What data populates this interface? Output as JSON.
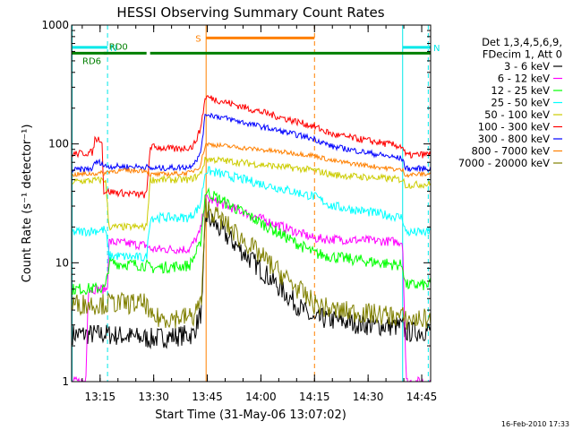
{
  "chart_data": {
    "type": "line",
    "title": "HESSI Observing Summary Count Rates",
    "xlabel": "Start Time (31-May-06 13:07:02)",
    "ylabel": "Count Rate (s⁻¹ detector⁻¹)",
    "yscale": "log",
    "ylim": [
      1,
      1000
    ],
    "xlim": [
      "13:07:02",
      "14:47:30"
    ],
    "x_ticks": [
      "13:15",
      "13:30",
      "13:45",
      "14:00",
      "14:15",
      "14:30",
      "14:45"
    ],
    "y_ticks": [
      "1",
      "10",
      "100",
      "1000"
    ],
    "grid": false,
    "legend_position": "right",
    "legend_header": [
      "Det 1,3,4,5,6,9,",
      "FDecim 1, Att 0"
    ],
    "date_stamp": "16-Feb-2010 17:33",
    "colors": {
      "frame": "#000000",
      "night": "#00e8e8",
      "saa": "#ff8000",
      "decim": "#007f00"
    },
    "markers": [
      {
        "label": "N",
        "color": "#00e8e8",
        "x_start": "13:07:02",
        "x_end": "13:17:05",
        "y": 650
      },
      {
        "label": "N",
        "color": "#00e8e8",
        "x_start": "14:39:40",
        "x_end": "14:47:30",
        "y": 650
      },
      {
        "label": "S",
        "color": "#ff8000",
        "x_start": "13:44:40",
        "x_end": "14:15:00",
        "y": 780
      },
      {
        "label": "RD0",
        "color": "#007f00",
        "x_start": "13:16:00",
        "x_end": "13:28:00",
        "y": 580
      },
      {
        "label": "RD6",
        "color": "#007f00",
        "x_start": "13:07:02",
        "x_end": "13:17:00",
        "y": 580
      },
      {
        "label": "",
        "color": "#007f00",
        "x_start": "13:29:00",
        "x_end": "14:47:30",
        "y": 580
      }
    ],
    "vertical_lines": [
      {
        "x": "13:07:10",
        "color": "#00e8e8",
        "style": "solid"
      },
      {
        "x": "13:17:05",
        "color": "#00e8e8",
        "style": "dashed"
      },
      {
        "x": "13:44:40",
        "color": "#ff8000",
        "style": "solid"
      },
      {
        "x": "14:15:00",
        "color": "#ff8000",
        "style": "dashed"
      },
      {
        "x": "14:39:40",
        "color": "#00e8e8",
        "style": "solid"
      },
      {
        "x": "14:46:50",
        "color": "#00e8e8",
        "style": "dashed"
      }
    ],
    "series": [
      {
        "name": "3 - 6 keV",
        "color": "#000000",
        "noise": 0.09,
        "points": [
          [
            "13:07:10",
            2.5
          ],
          [
            "13:17:00",
            2.5
          ],
          [
            "13:29:00",
            2.3
          ],
          [
            "13:41:00",
            2.5
          ],
          [
            "13:43:30",
            4
          ],
          [
            "13:44:30",
            25
          ],
          [
            "14:15:00",
            3.2
          ],
          [
            "14:17:00",
            3.4
          ],
          [
            "14:30:00",
            3
          ],
          [
            "14:39:40",
            2.9
          ],
          [
            "14:40:30",
            2.6
          ],
          [
            "14:47:30",
            2.7
          ]
        ]
      },
      {
        "name": "6 - 12 keV",
        "color": "#ff00ff",
        "noise": 0.04,
        "points": [
          [
            "13:07:10",
            1.0
          ],
          [
            "13:11:00",
            1.0
          ],
          [
            "13:11:40",
            6.0
          ],
          [
            "13:17:00",
            6.0
          ],
          [
            "13:17:30",
            15
          ],
          [
            "13:28:00",
            14
          ],
          [
            "13:29:00",
            13
          ],
          [
            "13:40:00",
            13
          ],
          [
            "13:43:00",
            18
          ],
          [
            "13:44:30",
            35
          ],
          [
            "14:15:00",
            16
          ],
          [
            "14:39:40",
            15
          ],
          [
            "14:40:40",
            1.0
          ],
          [
            "14:47:30",
            1.0
          ]
        ]
      },
      {
        "name": "12 - 25 keV",
        "color": "#00ff00",
        "noise": 0.05,
        "points": [
          [
            "13:07:10",
            6.0
          ],
          [
            "13:16:30",
            6.1
          ],
          [
            "13:17:30",
            10
          ],
          [
            "13:28:00",
            9.5
          ],
          [
            "13:29:00",
            9
          ],
          [
            "13:40:00",
            9.5
          ],
          [
            "13:43:00",
            14
          ],
          [
            "13:44:30",
            40
          ],
          [
            "14:15:00",
            12
          ],
          [
            "14:22:00",
            11
          ],
          [
            "14:39:40",
            9.5
          ],
          [
            "14:40:30",
            6.5
          ],
          [
            "14:47:30",
            6.5
          ]
        ]
      },
      {
        "name": "25 - 50 keV",
        "color": "#00ffff",
        "noise": 0.04,
        "points": [
          [
            "13:07:10",
            18
          ],
          [
            "13:16:30",
            19
          ],
          [
            "13:17:30",
            11.5
          ],
          [
            "13:28:00",
            11
          ],
          [
            "13:29:00",
            24
          ],
          [
            "13:40:00",
            24
          ],
          [
            "13:43:00",
            30
          ],
          [
            "13:44:30",
            60
          ],
          [
            "14:15:00",
            36
          ],
          [
            "14:20:00",
            30
          ],
          [
            "14:39:40",
            24
          ],
          [
            "14:40:30",
            18
          ],
          [
            "14:47:30",
            18
          ]
        ]
      },
      {
        "name": "50 - 100 keV",
        "color": "#cccc00",
        "noise": 0.03,
        "points": [
          [
            "13:07:10",
            48
          ],
          [
            "13:16:30",
            50
          ],
          [
            "13:17:30",
            20
          ],
          [
            "13:28:00",
            20
          ],
          [
            "13:29:00",
            50
          ],
          [
            "13:40:00",
            50
          ],
          [
            "13:43:00",
            55
          ],
          [
            "13:44:30",
            75
          ],
          [
            "14:15:00",
            60
          ],
          [
            "14:20:00",
            55
          ],
          [
            "14:39:40",
            50
          ],
          [
            "14:40:30",
            45
          ],
          [
            "14:47:30",
            46
          ]
        ]
      },
      {
        "name": "100 - 300 keV",
        "color": "#ff0000",
        "noise": 0.03,
        "points": [
          [
            "13:07:10",
            82
          ],
          [
            "13:13:00",
            85
          ],
          [
            "13:13:30",
            110
          ],
          [
            "13:15:30",
            110
          ],
          [
            "13:16:00",
            40
          ],
          [
            "13:28:00",
            37
          ],
          [
            "13:29:00",
            95
          ],
          [
            "13:36:00",
            90
          ],
          [
            "13:41:00",
            95
          ],
          [
            "13:43:00",
            130
          ],
          [
            "13:44:30",
            250
          ],
          [
            "14:15:00",
            140
          ],
          [
            "14:20:00",
            120
          ],
          [
            "14:39:40",
            95
          ],
          [
            "14:40:30",
            80
          ],
          [
            "14:47:30",
            82
          ]
        ]
      },
      {
        "name": "300 - 800 keV",
        "color": "#0000ff",
        "noise": 0.025,
        "points": [
          [
            "13:07:10",
            60
          ],
          [
            "13:13:00",
            62
          ],
          [
            "13:13:30",
            70
          ],
          [
            "13:15:30",
            70
          ],
          [
            "13:16:00",
            65
          ],
          [
            "13:28:00",
            64
          ],
          [
            "13:29:00",
            62
          ],
          [
            "13:40:00",
            64
          ],
          [
            "13:43:00",
            80
          ],
          [
            "13:44:30",
            180
          ],
          [
            "14:15:00",
            110
          ],
          [
            "14:20:00",
            95
          ],
          [
            "14:39:40",
            75
          ],
          [
            "14:40:30",
            62
          ],
          [
            "14:47:30",
            62
          ]
        ]
      },
      {
        "name": "800 - 7000 keV",
        "color": "#ff8000",
        "noise": 0.02,
        "points": [
          [
            "13:07:10",
            55
          ],
          [
            "13:16:30",
            57
          ],
          [
            "13:17:30",
            59
          ],
          [
            "13:28:00",
            60
          ],
          [
            "13:29:00",
            55
          ],
          [
            "13:40:00",
            57
          ],
          [
            "13:43:00",
            65
          ],
          [
            "13:44:30",
            100
          ],
          [
            "14:15:00",
            80
          ],
          [
            "14:20:00",
            72
          ],
          [
            "14:39:40",
            60
          ],
          [
            "14:40:30",
            55
          ],
          [
            "14:47:30",
            56
          ]
        ]
      },
      {
        "name": "7000 - 20000 keV",
        "color": "#808000",
        "noise": 0.09,
        "points": [
          [
            "13:07:10",
            4.5
          ],
          [
            "13:16:30",
            4.5
          ],
          [
            "13:17:30",
            4.6
          ],
          [
            "13:28:00",
            4.5
          ],
          [
            "13:29:00",
            3.4
          ],
          [
            "13:41:00",
            3.5
          ],
          [
            "13:43:30",
            5
          ],
          [
            "13:44:30",
            30
          ],
          [
            "14:15:00",
            4.5
          ],
          [
            "14:20:00",
            4.0
          ],
          [
            "14:39:40",
            3.5
          ],
          [
            "14:40:30",
            3.3
          ],
          [
            "14:47:30",
            3.4
          ]
        ]
      }
    ]
  }
}
